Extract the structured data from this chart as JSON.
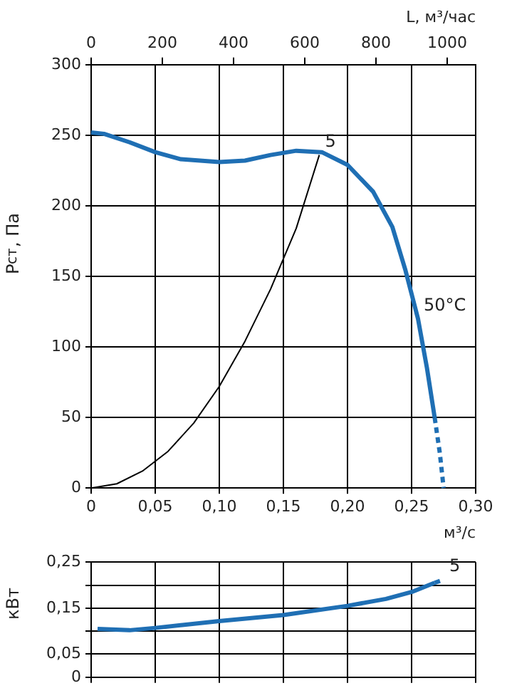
{
  "chart_data": [
    {
      "type": "line",
      "xlabel": "м³/с",
      "ylabel": "P$_{ст}$, Па",
      "x2label": "L, м³/час",
      "xlim": [
        0,
        0.3
      ],
      "xticks": [
        0,
        {
          "value": 0.05,
          "label": "0,05"
        },
        {
          "value": 0.1,
          "label": "0,10"
        },
        {
          "value": 0.15,
          "label": "0,15"
        },
        {
          "value": 0.2,
          "label": "0,20"
        },
        {
          "value": 0.25,
          "label": "0,25"
        },
        {
          "value": 0.3,
          "label": "0,30"
        }
      ],
      "x2lim": [
        0,
        1080
      ],
      "x2ticks": [
        0,
        200,
        400,
        600,
        800,
        1000
      ],
      "ylim": [
        0,
        300
      ],
      "yticks": [
        0,
        50,
        100,
        150,
        200,
        250,
        300
      ],
      "grid": true,
      "legend": false,
      "marker": "none",
      "series": [
        {
          "color": "#1f6fb4",
          "line_style": "solid",
          "x": [
            0,
            0.01,
            0.03,
            0.05,
            0.07,
            0.1,
            0.12,
            0.14,
            0.16,
            0.18,
            0.2,
            0.22,
            0.235,
            0.245,
            0.255,
            0.262,
            0.268
          ],
          "values": [
            252,
            251,
            245,
            238,
            233,
            231,
            232,
            236,
            239,
            238,
            229,
            210,
            185,
            155,
            120,
            85,
            50
          ]
        },
        {
          "color": "#1f6fb4",
          "line_style": "dashed",
          "x": [
            0.268,
            0.272,
            0.275
          ],
          "values": [
            50,
            25,
            0
          ]
        },
        {
          "color": "#000000",
          "line_style": "solid",
          "x": [
            0,
            0.02,
            0.04,
            0.06,
            0.08,
            0.1,
            0.12,
            0.14,
            0.16,
            0.178
          ],
          "values": [
            0,
            3,
            12,
            26,
            46,
            72,
            104,
            141,
            184,
            236
          ]
        }
      ],
      "annotations": [
        {
          "text": "5",
          "x": 0.178,
          "y": 236
        },
        {
          "text": "50°C",
          "x": 0.255,
          "y": 120
        }
      ]
    },
    {
      "type": "line",
      "ylabel": "кВт",
      "xlim": [
        0,
        0.3
      ],
      "xticks": [
        0,
        0.05,
        0.1,
        0.15,
        0.2,
        0.25,
        0.3
      ],
      "ylim": [
        0,
        0.25
      ],
      "yticks": [
        {
          "value": 0,
          "label": "0"
        },
        {
          "value": 0.05,
          "label": "0,05"
        },
        {
          "value": 0.1,
          "label": null
        },
        {
          "value": 0.15,
          "label": "0,15"
        },
        {
          "value": 0.2,
          "label": null
        },
        {
          "value": 0.25,
          "label": "0,25"
        }
      ],
      "tick_labels": "y",
      "grid": true,
      "legend": false,
      "marker": "none",
      "series": [
        {
          "color": "#1f6fb4",
          "line_style": "solid",
          "x": [
            0.005,
            0.03,
            0.05,
            0.1,
            0.15,
            0.2,
            0.23,
            0.25,
            0.268
          ],
          "values": [
            0.105,
            0.102,
            0.107,
            0.122,
            0.135,
            0.155,
            0.17,
            0.185,
            0.205
          ]
        },
        {
          "color": "#1f6fb4",
          "line_style": "dashed",
          "x": [
            0.268,
            0.275
          ],
          "values": [
            0.205,
            0.212
          ]
        }
      ],
      "annotations": [
        {
          "text": "5",
          "x": 0.275,
          "y": 0.212
        }
      ]
    }
  ]
}
